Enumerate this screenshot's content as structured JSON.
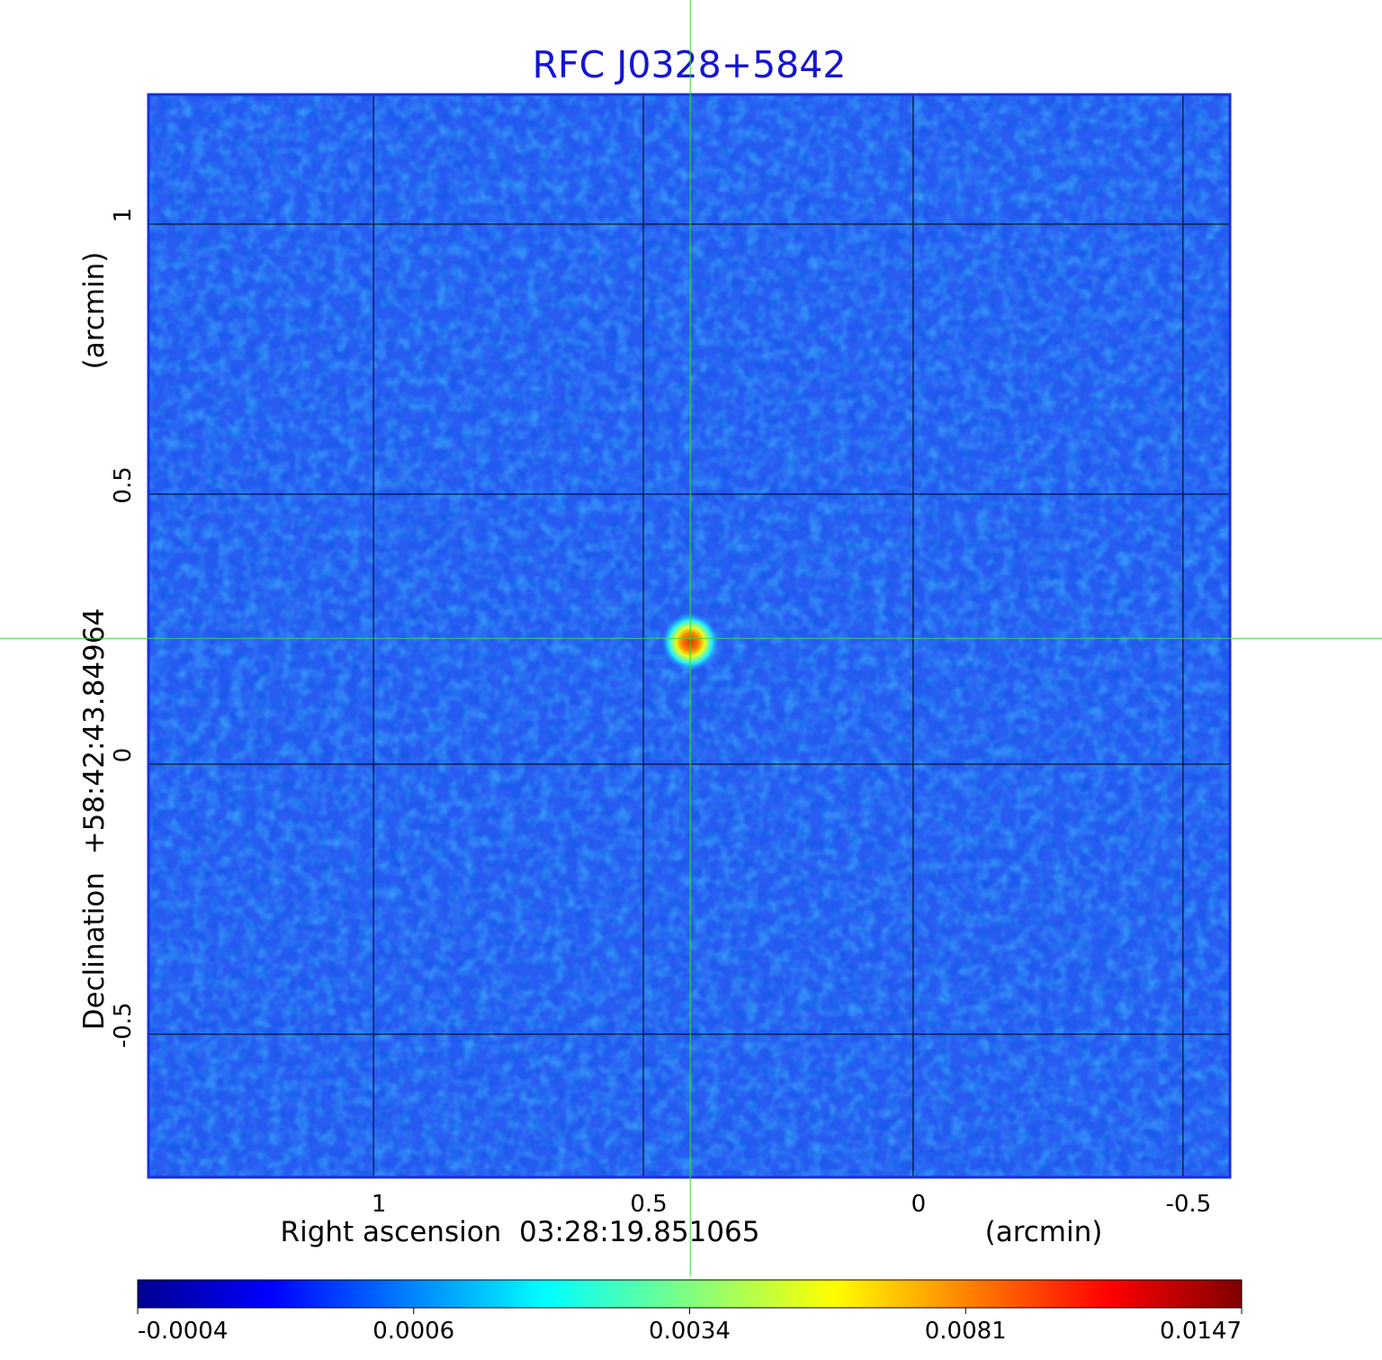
{
  "chart_data": {
    "type": "image",
    "title": "RFC J0328+5842",
    "xlabel": "Right ascension  03:28:19.851065",
    "xunit": "(arcmin)",
    "ylabel": "Declination  +58:42:43.84964",
    "yunit": "(arcmin)",
    "xlim": [
      1.417,
      -0.587
    ],
    "ylim": [
      -0.765,
      1.24
    ],
    "xticks": [
      1.0,
      0.5,
      0.0,
      -0.5
    ],
    "yticks": [
      -0.5,
      0.0,
      0.5,
      1.0
    ],
    "grid": true,
    "grid_color": "#000000",
    "crosshair": {
      "x": 0.413,
      "y": 0.233,
      "color": "#33dd33"
    },
    "source": {
      "x": 0.413,
      "y": 0.233,
      "peak": 0.0147
    },
    "colorbar": {
      "colormap": "jet",
      "ticks": [
        -0.0004,
        0.0006,
        0.0034,
        0.0081,
        0.0147
      ]
    }
  }
}
